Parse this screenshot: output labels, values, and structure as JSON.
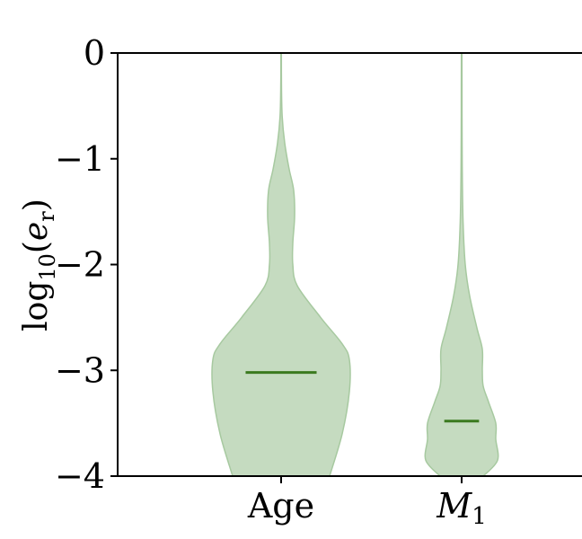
{
  "chart_data": {
    "type": "violin",
    "title": "",
    "xlabel": "",
    "ylabel": "log10(e_r)",
    "ylabel_parts": {
      "base": "log",
      "sub": "10",
      "open": "(",
      "var": "e",
      "var_sub": "r",
      "close": ")"
    },
    "ylim": [
      -4,
      0
    ],
    "yticks": [
      0,
      -1,
      -2,
      -3,
      -4
    ],
    "ytick_labels": [
      "0",
      "−1",
      "−2",
      "−3",
      "−4"
    ],
    "grid": false,
    "legend": "none",
    "colors": {
      "fill": "#c5dbc0",
      "edge": "#a7c9a0",
      "median": "#3b7a1f"
    },
    "categories": [
      "Age",
      "M1"
    ],
    "category_labels": [
      {
        "main": "Age",
        "sub": ""
      },
      {
        "main": "M",
        "sub": "1"
      }
    ],
    "series": [
      {
        "category": "Age",
        "median": -3.02,
        "profile": [
          {
            "y": -4.0,
            "w": 0.27
          },
          {
            "y": -3.6,
            "w": 0.34
          },
          {
            "y": -3.2,
            "w": 0.38
          },
          {
            "y": -2.9,
            "w": 0.38
          },
          {
            "y": -2.75,
            "w": 0.34
          },
          {
            "y": -2.5,
            "w": 0.22
          },
          {
            "y": -2.2,
            "w": 0.09
          },
          {
            "y": -2.0,
            "w": 0.065
          },
          {
            "y": -1.8,
            "w": 0.065
          },
          {
            "y": -1.55,
            "w": 0.075
          },
          {
            "y": -1.3,
            "w": 0.07
          },
          {
            "y": -1.1,
            "w": 0.045
          },
          {
            "y": -0.85,
            "w": 0.02
          },
          {
            "y": -0.6,
            "w": 0.006
          },
          {
            "y": -0.3,
            "w": 0.002
          },
          {
            "y": 0.0,
            "w": 0.0015
          }
        ]
      },
      {
        "category": "M1",
        "median": -3.48,
        "profile": [
          {
            "y": -4.0,
            "w": 0.12
          },
          {
            "y": -3.85,
            "w": 0.2
          },
          {
            "y": -3.65,
            "w": 0.19
          },
          {
            "y": -3.5,
            "w": 0.19
          },
          {
            "y": -3.3,
            "w": 0.15
          },
          {
            "y": -3.15,
            "w": 0.12
          },
          {
            "y": -3.0,
            "w": 0.115
          },
          {
            "y": -2.8,
            "w": 0.115
          },
          {
            "y": -2.6,
            "w": 0.085
          },
          {
            "y": -2.3,
            "w": 0.045
          },
          {
            "y": -2.0,
            "w": 0.02
          },
          {
            "y": -1.6,
            "w": 0.008
          },
          {
            "y": -1.2,
            "w": 0.004
          },
          {
            "y": -0.8,
            "w": 0.0025
          },
          {
            "y": -0.3,
            "w": 0.002
          },
          {
            "y": 0.0,
            "w": 0.0015
          }
        ]
      }
    ]
  }
}
